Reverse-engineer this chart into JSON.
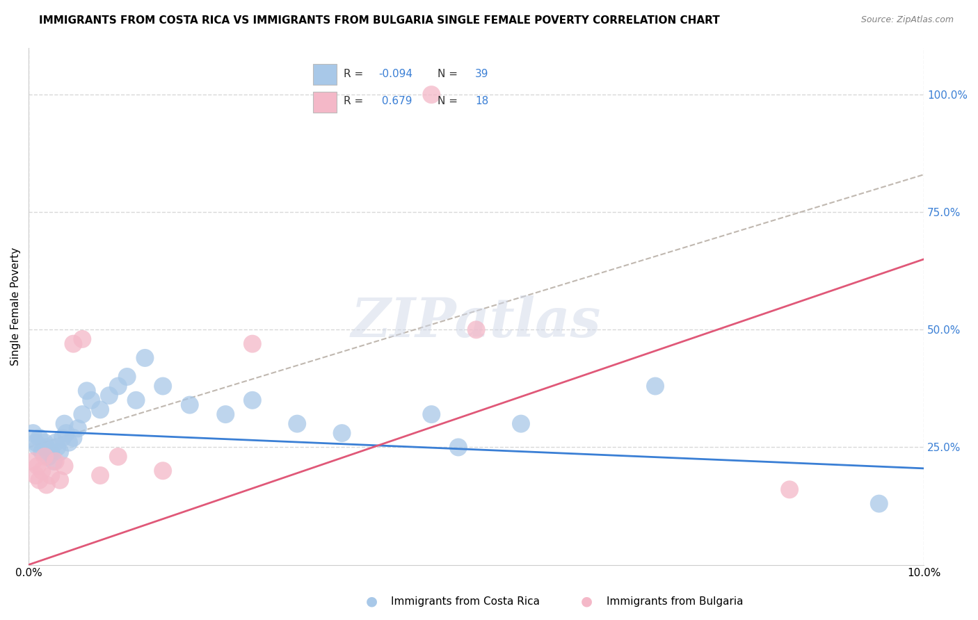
{
  "title": "IMMIGRANTS FROM COSTA RICA VS IMMIGRANTS FROM BULGARIA SINGLE FEMALE POVERTY CORRELATION CHART",
  "source": "Source: ZipAtlas.com",
  "ylabel": "Single Female Poverty",
  "watermark": "ZIPatlas",
  "legend_label1": "Immigrants from Costa Rica",
  "legend_label2": "Immigrants from Bulgaria",
  "costa_rica_color": "#a8c8e8",
  "bulgaria_color": "#f4b8c8",
  "costa_rica_line_color": "#3a7fd5",
  "bulgaria_line_color": "#e05878",
  "trend_dashed_color": "#c0b8b0",
  "xlim": [
    0.0,
    10.0
  ],
  "ylim": [
    0.0,
    110.0
  ],
  "yticks": [
    25,
    50,
    75,
    100
  ],
  "ytick_labels": [
    "25.0%",
    "50.0%",
    "75.0%",
    "100.0%"
  ],
  "grid_color": "#d8d8d8",
  "background_color": "#ffffff",
  "costa_rica_x": [
    0.05,
    0.08,
    0.1,
    0.12,
    0.15,
    0.18,
    0.2,
    0.22,
    0.25,
    0.28,
    0.3,
    0.32,
    0.35,
    0.38,
    0.4,
    0.42,
    0.45,
    0.5,
    0.55,
    0.6,
    0.65,
    0.7,
    0.8,
    0.9,
    1.0,
    1.1,
    1.2,
    1.5,
    1.8,
    2.2,
    2.5,
    3.0,
    3.5,
    4.5,
    4.8,
    5.5,
    7.0,
    9.5,
    1.3
  ],
  "costa_rica_y": [
    28,
    26,
    25,
    27,
    24,
    26,
    25,
    23,
    24,
    22,
    26,
    25,
    24,
    27,
    30,
    28,
    26,
    27,
    29,
    32,
    37,
    35,
    33,
    36,
    38,
    40,
    35,
    38,
    34,
    32,
    35,
    30,
    28,
    32,
    25,
    30,
    38,
    13,
    44
  ],
  "bulgaria_x": [
    0.05,
    0.08,
    0.1,
    0.12,
    0.15,
    0.18,
    0.2,
    0.25,
    0.3,
    0.35,
    0.4,
    0.5,
    0.6,
    0.8,
    1.0,
    1.5,
    2.5,
    4.5,
    5.0,
    8.5
  ],
  "bulgaria_y": [
    22,
    19,
    21,
    18,
    20,
    23,
    17,
    19,
    22,
    18,
    21,
    47,
    48,
    19,
    23,
    20,
    47,
    100,
    50,
    16
  ],
  "cr_line_x0": 0.0,
  "cr_line_y0": 28.5,
  "cr_line_x1": 10.0,
  "cr_line_y1": 20.5,
  "bg_line_x0": 0.0,
  "bg_line_y0": 0.0,
  "bg_line_x1": 10.0,
  "bg_line_y1": 65.0,
  "dash_line_x0": 0.0,
  "dash_line_y0": 25.0,
  "dash_line_x1": 10.0,
  "dash_line_y1": 83.0
}
